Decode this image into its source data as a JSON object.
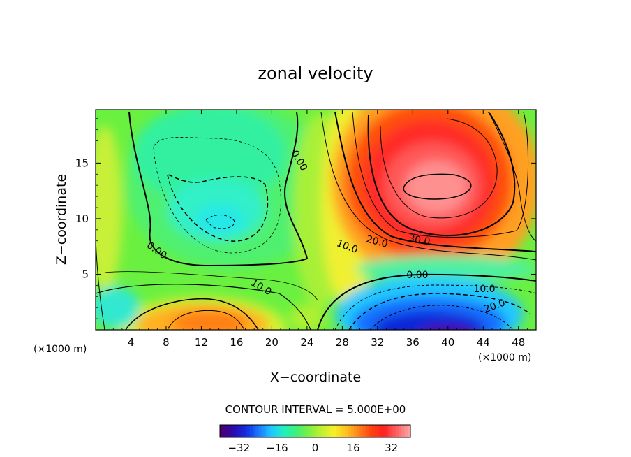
{
  "chart_data": {
    "type": "heatmap",
    "title": "zonal velocity",
    "xlabel": "X−coordinate",
    "ylabel": "Z−coordinate",
    "x_unit_left": "(×1000 m)",
    "x_unit_right": "(×1000 m)",
    "xlim": [
      0,
      50
    ],
    "ylim": [
      0,
      19.8
    ],
    "x_ticks": [
      "4",
      "8",
      "12",
      "16",
      "20",
      "24",
      "28",
      "32",
      "36",
      "40",
      "44",
      "48"
    ],
    "y_ticks": [
      "5",
      "10",
      "15"
    ],
    "contour_interval": "CONTOUR INTERVAL = 5.000E+00",
    "colorbar": {
      "range": [
        -40,
        40
      ],
      "ticks": [
        "−32",
        "−16",
        "0",
        "16",
        "32"
      ],
      "colors": [
        "#4a0070",
        "#2a0ab0",
        "#1030e0",
        "#1c78ff",
        "#1ec8ff",
        "#20f0c0",
        "#3cf07a",
        "#7cf040",
        "#c0f030",
        "#f4f028",
        "#ffc020",
        "#ff8018",
        "#ff4010",
        "#ff2020",
        "#ff6060",
        "#ffa0a0"
      ]
    },
    "contour_labels": [
      "0.00",
      "0.00",
      "10.0",
      "20.0",
      "30.0",
      "0.00",
      "10.0",
      "20.0",
      "10.0"
    ],
    "features": [
      {
        "name": "positive jet core",
        "x": 38.5,
        "z": 13,
        "peak": 38
      },
      {
        "name": "negative low-level jet",
        "x": 38,
        "z": 1.5,
        "peak": -30
      },
      {
        "name": "low-level positive region",
        "x": 14,
        "z": 1.5,
        "peak": 18
      },
      {
        "name": "upper-left weak negative",
        "x": 14,
        "z": 10.5,
        "peak": -14
      }
    ]
  }
}
